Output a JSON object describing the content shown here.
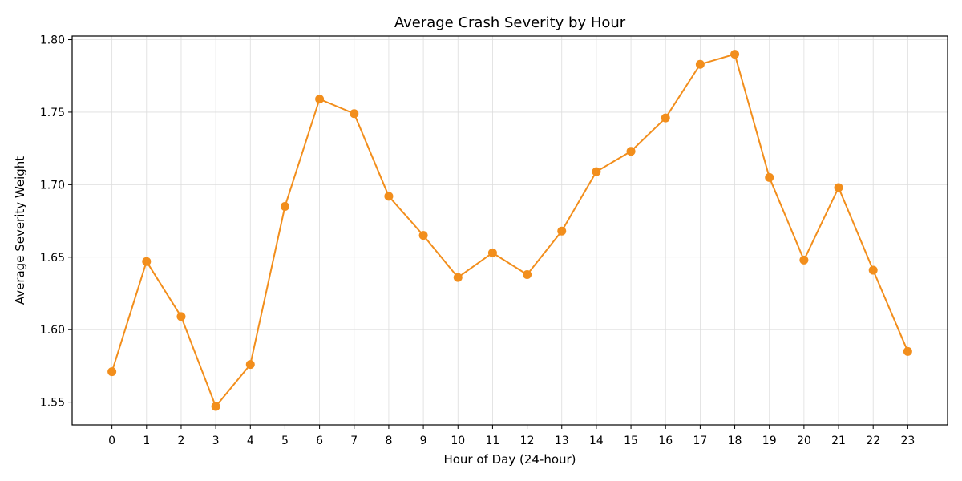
{
  "chart_data": {
    "type": "line",
    "title": "Average Crash Severity by Hour",
    "xlabel": "Hour of Day (24-hour)",
    "ylabel": "Average Severity Weight",
    "x": [
      0,
      1,
      2,
      3,
      4,
      5,
      6,
      7,
      8,
      9,
      10,
      11,
      12,
      13,
      14,
      15,
      16,
      17,
      18,
      19,
      20,
      21,
      22,
      23
    ],
    "xticks": [
      "0",
      "1",
      "2",
      "3",
      "4",
      "5",
      "6",
      "7",
      "8",
      "9",
      "10",
      "11",
      "12",
      "13",
      "14",
      "15",
      "16",
      "17",
      "18",
      "19",
      "20",
      "21",
      "22",
      "23"
    ],
    "yticks": [
      1.55,
      1.6,
      1.65,
      1.7,
      1.75,
      1.8
    ],
    "ytick_labels": [
      "1.55",
      "1.60",
      "1.65",
      "1.70",
      "1.75",
      "1.80"
    ],
    "series": [
      {
        "values": [
          1.571,
          1.647,
          1.609,
          1.547,
          1.576,
          1.685,
          1.759,
          1.749,
          1.692,
          1.665,
          1.636,
          1.653,
          1.638,
          1.668,
          1.709,
          1.723,
          1.746,
          1.783,
          1.79,
          1.705,
          1.648,
          1.698,
          1.641,
          1.585
        ],
        "color": "#f28e1c",
        "marker": "circle"
      }
    ],
    "xlim": [
      -1.15,
      24.15
    ],
    "ylim": [
      1.5343,
      1.8025
    ],
    "grid": true,
    "legend": "none"
  }
}
